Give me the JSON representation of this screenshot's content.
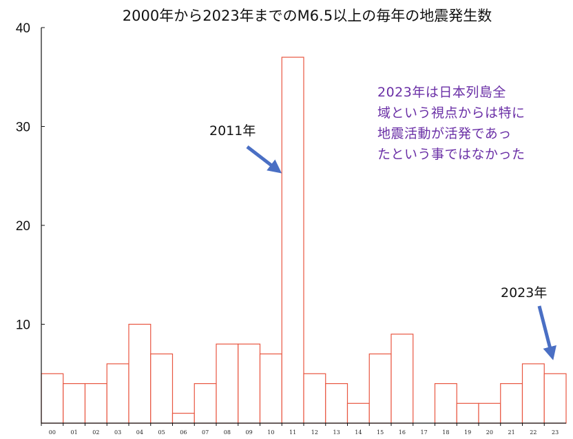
{
  "chart_data": {
    "type": "bar",
    "title": "2000年から2023年までのM6.5以上の毎年の地震発生数",
    "categories": [
      "00",
      "01",
      "02",
      "03",
      "04",
      "05",
      "06",
      "07",
      "08",
      "09",
      "10",
      "11",
      "12",
      "13",
      "14",
      "15",
      "16",
      "17",
      "18",
      "19",
      "20",
      "21",
      "22",
      "23"
    ],
    "values": [
      5,
      4,
      4,
      6,
      10,
      7,
      1,
      4,
      8,
      8,
      7,
      37,
      5,
      4,
      2,
      7,
      9,
      0,
      4,
      2,
      2,
      4,
      6,
      5
    ],
    "ylim": [
      0,
      40
    ],
    "yticks": [
      "10",
      "20",
      "30",
      "40"
    ],
    "grid": false,
    "bar_color": "#e8553f",
    "annotations": {
      "peak_label": "2011年",
      "last_label": "2023年",
      "arrow_color": "#4a6fc4",
      "note_lines": [
        "2023年は日本列島全",
        "域という視点からは特に",
        "地震活動が活発であっ",
        "たという事ではなかった"
      ],
      "note_color": "#6a2fa6"
    }
  }
}
